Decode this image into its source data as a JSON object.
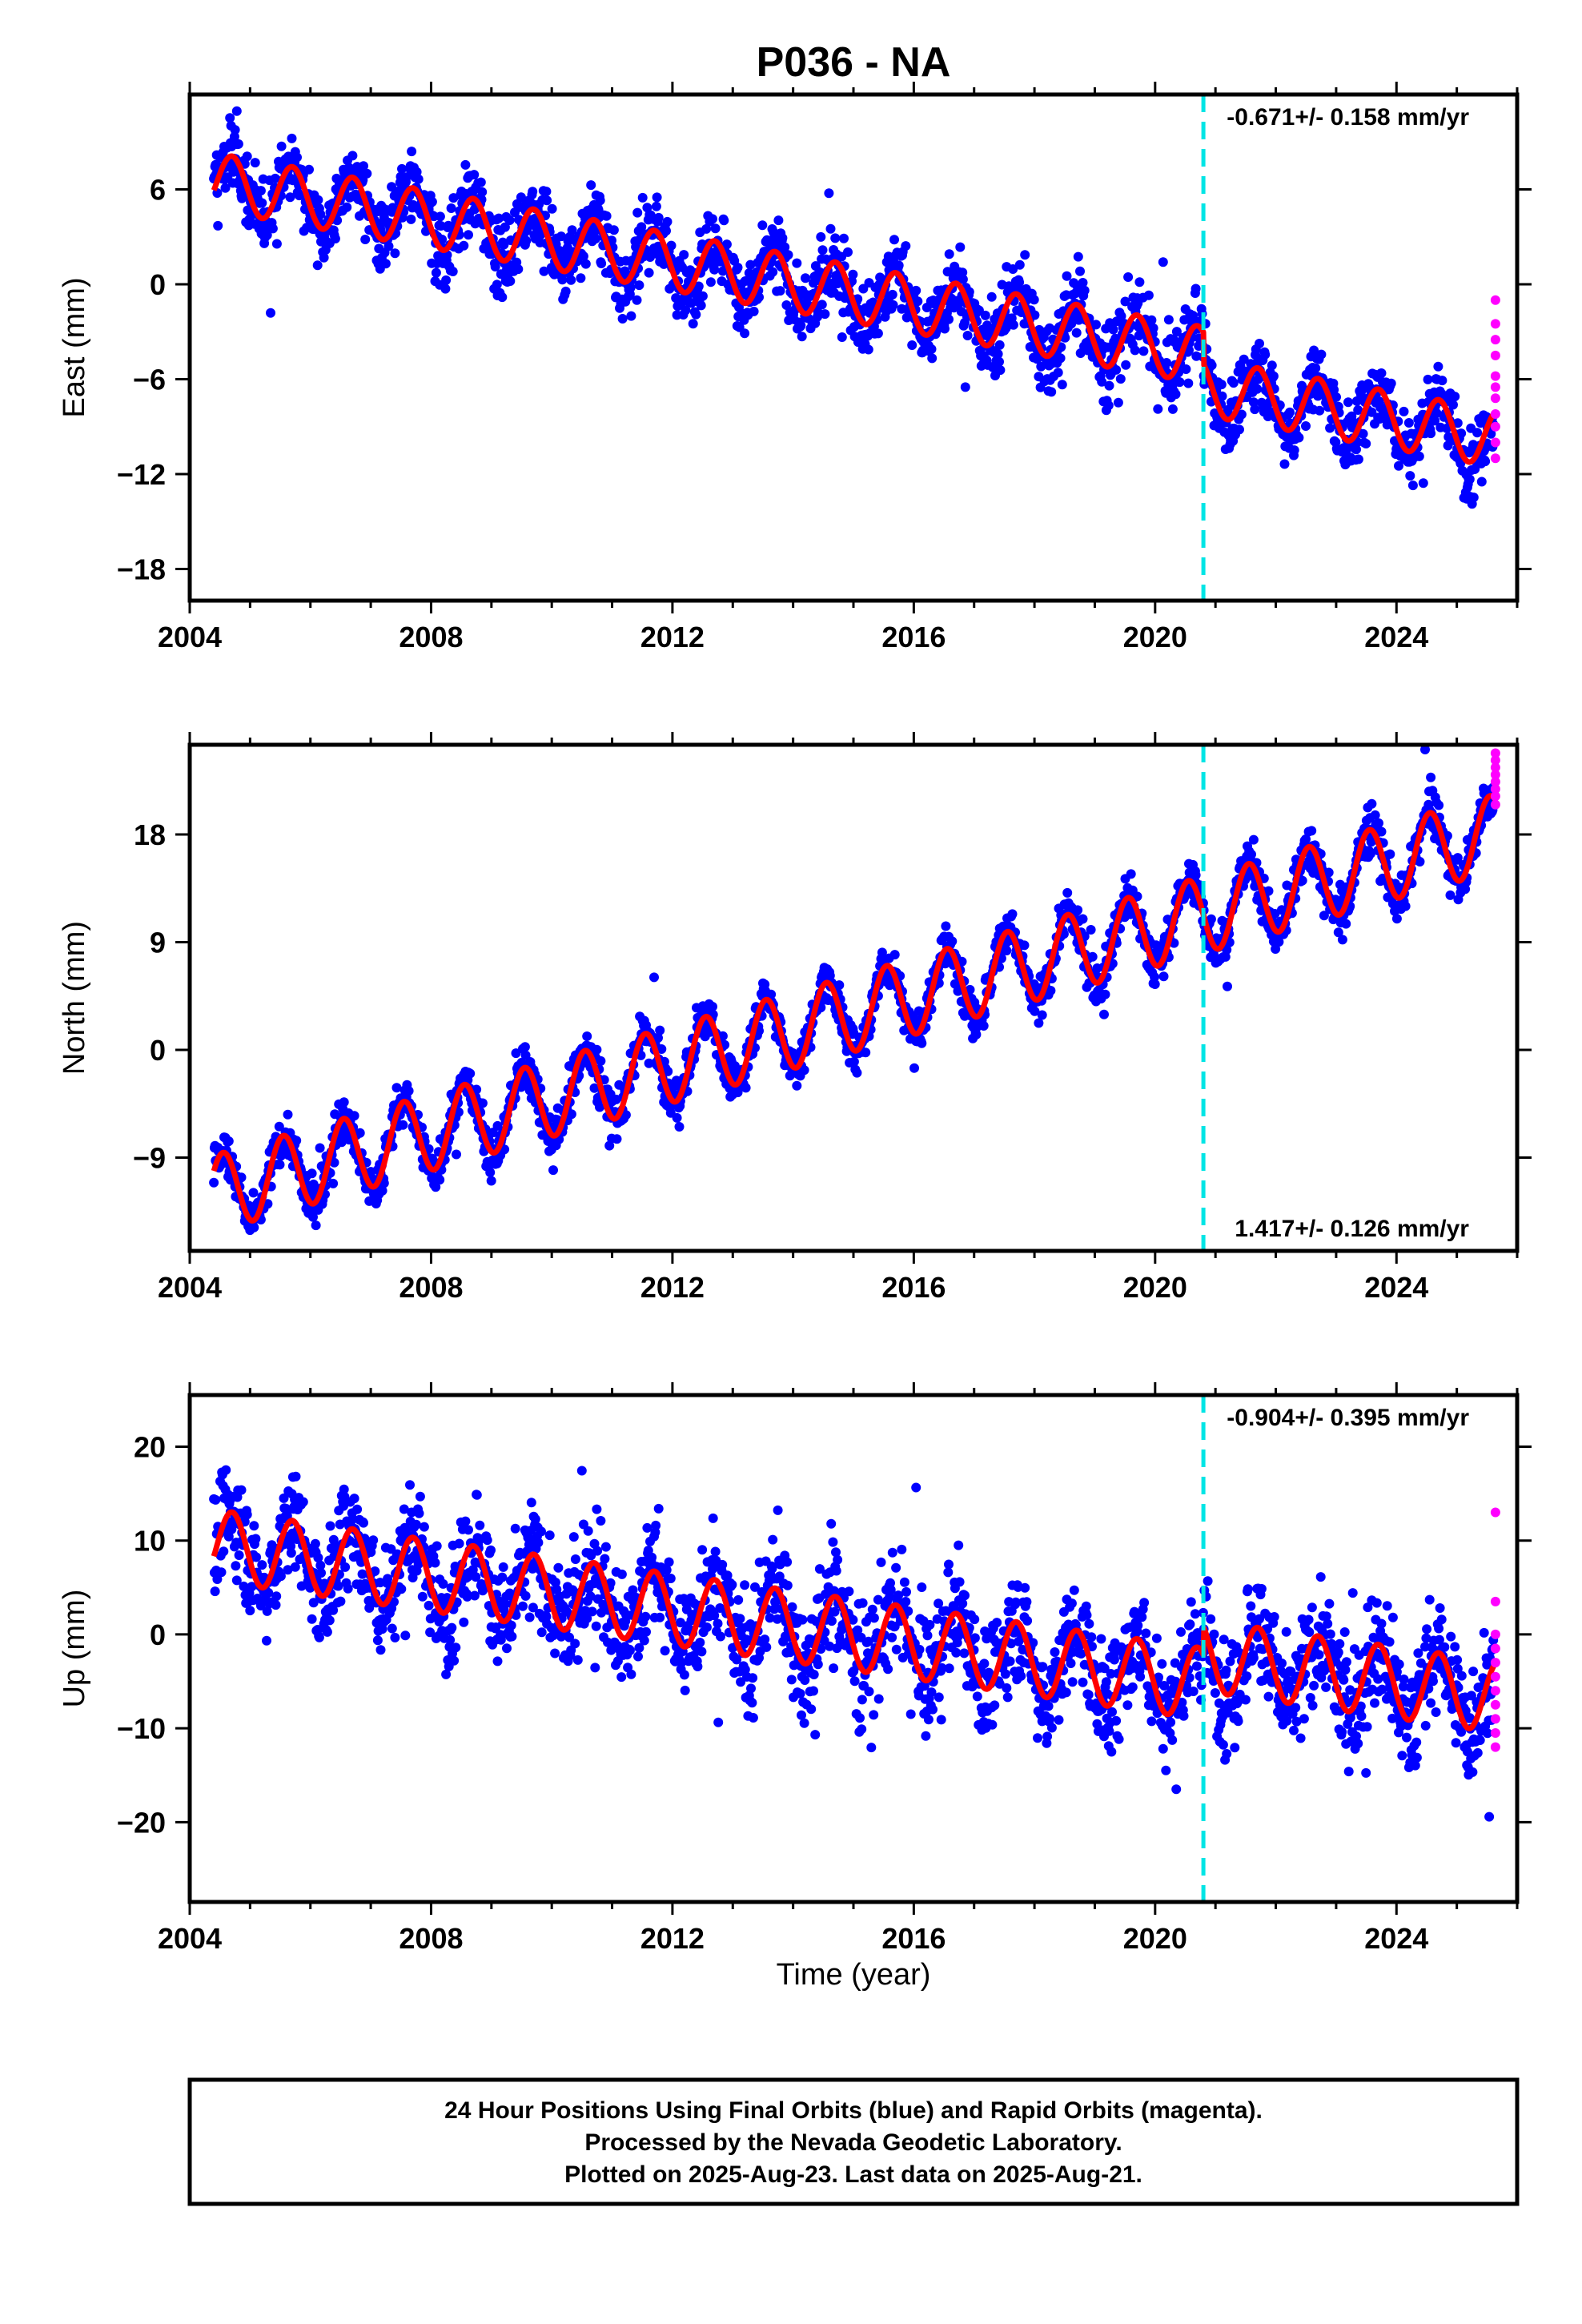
{
  "title": "P036 - NA",
  "xlabel": "Time (year)",
  "caption": [
    "24 Hour Positions Using Final Orbits (blue) and Rapid Orbits (magenta).",
    "Processed by the Nevada Geodetic Laboratory.",
    "Plotted on 2025-Aug-23. Last data on 2025-Aug-21."
  ],
  "colors": {
    "final": "#0000ff",
    "rapid": "#ff00ff",
    "model": "#ff0000",
    "break": "#00e5e5"
  },
  "chart_data": [
    {
      "type": "scatter",
      "panel": "east",
      "ylabel": "East (mm)",
      "xlim": [
        2004.0,
        2026.0
      ],
      "ylim": [
        -20.0,
        12.0
      ],
      "xticks": [
        2004,
        2008,
        2012,
        2016,
        2020,
        2024
      ],
      "yticks": [
        -18,
        -12,
        -6,
        0,
        6
      ],
      "rate_label": "-0.671+/- 0.158 mm/yr",
      "rate_position": "top-right",
      "equipment_change_year": 2020.8,
      "data_span": [
        2004.4,
        2025.64
      ],
      "model": {
        "offset_at_2004_4": 6.5,
        "trend_mm_per_yr": -0.67,
        "annual_amplitude_mm": 1.8,
        "annual_peak_fraction": 0.7,
        "step_at_break_mm": -2.0
      },
      "scatter_noise_mm": 1.6,
      "rapid_points": [
        -1.0,
        -2.5,
        -3.5,
        -4.5,
        -5.8,
        -6.5,
        -7.2,
        -8.2,
        -9.0,
        -10.0,
        -11.0
      ],
      "series": [
        {
          "name": "Final Orbits",
          "color": "#0000ff"
        },
        {
          "name": "Rapid Orbits",
          "color": "#ff00ff"
        },
        {
          "name": "Model",
          "color": "#ff0000"
        }
      ]
    },
    {
      "type": "scatter",
      "panel": "north",
      "ylabel": "North (mm)",
      "xlim": [
        2004.0,
        2026.0
      ],
      "ylim": [
        -16.8,
        25.5
      ],
      "xticks": [
        2004,
        2008,
        2012,
        2016,
        2020,
        2024
      ],
      "yticks": [
        -9,
        0,
        9,
        18
      ],
      "rate_label": "1.417+/- 0.126 mm/yr",
      "rate_position": "bottom-right",
      "equipment_change_year": 2020.8,
      "data_span": [
        2004.4,
        2025.64
      ],
      "model": {
        "offset_at_2004_4": -12.0,
        "trend_mm_per_yr": 1.42,
        "annual_amplitude_mm": 3.2,
        "annual_peak_fraction": 0.55,
        "step_at_break_mm": 0.0
      },
      "scatter_noise_mm": 1.3,
      "rapid_points": [
        20.5,
        21.2,
        21.8,
        22.4,
        23.0,
        23.6,
        24.2,
        24.8
      ],
      "series": [
        {
          "name": "Final Orbits",
          "color": "#0000ff"
        },
        {
          "name": "Rapid Orbits",
          "color": "#ff00ff"
        },
        {
          "name": "Model",
          "color": "#ff0000"
        }
      ]
    },
    {
      "type": "scatter",
      "panel": "up",
      "ylabel": "Up (mm)",
      "xlim": [
        2004.0,
        2026.0
      ],
      "ylim": [
        -28.5,
        25.5
      ],
      "xticks": [
        2004,
        2008,
        2012,
        2016,
        2020,
        2024
      ],
      "yticks": [
        -20,
        -10,
        0,
        10,
        20
      ],
      "rate_label": "-0.904+/- 0.395 mm/yr",
      "rate_position": "top-right",
      "equipment_change_year": 2020.8,
      "data_span": [
        2004.4,
        2025.64
      ],
      "model": {
        "offset_at_2004_4": 9.5,
        "trend_mm_per_yr": -0.9,
        "annual_amplitude_mm": 3.8,
        "annual_peak_fraction": 0.7,
        "step_at_break_mm": 3.0
      },
      "scatter_noise_mm": 4.2,
      "rapid_points": [
        13.0,
        3.5,
        0.0,
        -1.5,
        -3.0,
        -4.5,
        -6.0,
        -7.5,
        -9.0,
        -10.5,
        -12.0
      ],
      "series": [
        {
          "name": "Final Orbits",
          "color": "#0000ff"
        },
        {
          "name": "Rapid Orbits",
          "color": "#ff00ff"
        },
        {
          "name": "Model",
          "color": "#ff0000"
        }
      ]
    }
  ]
}
